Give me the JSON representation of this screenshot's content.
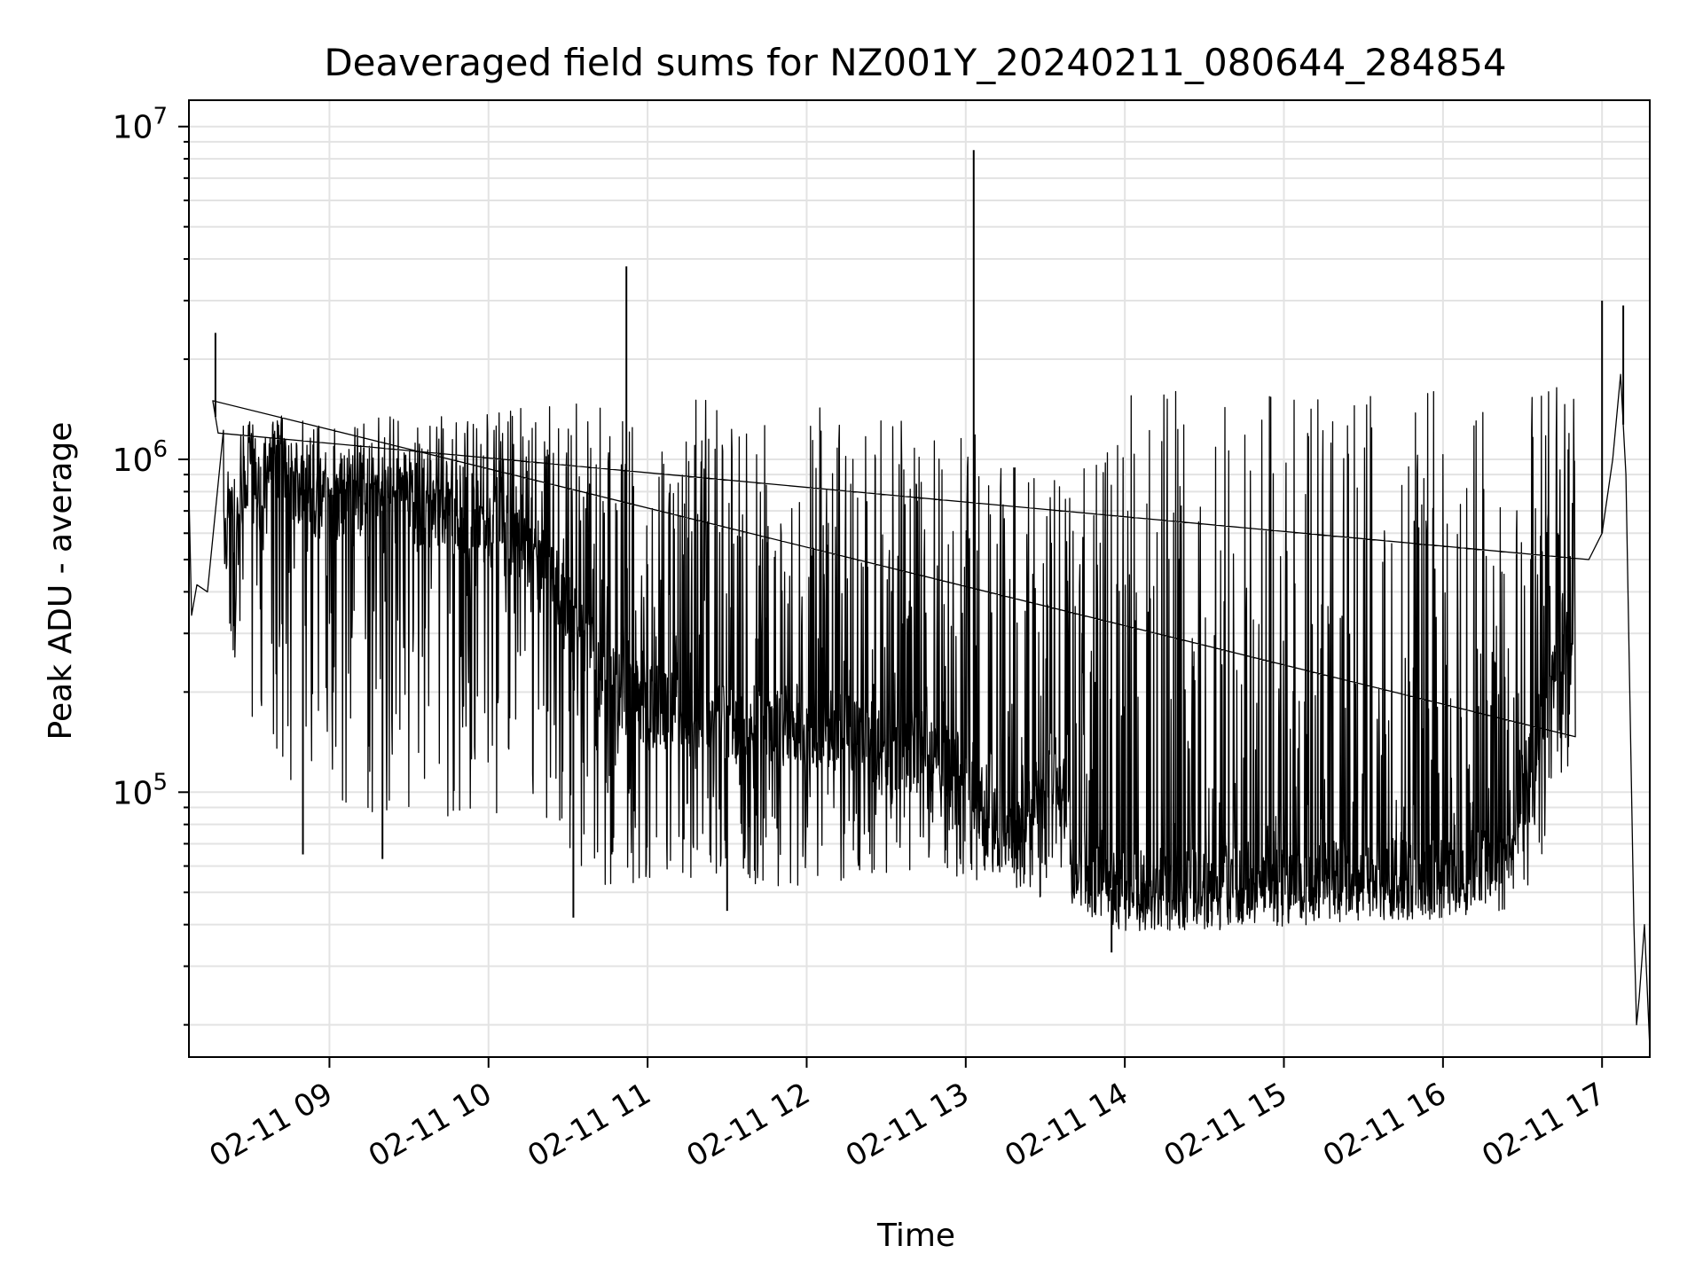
{
  "chart_data": {
    "type": "line",
    "title": "Deaveraged field sums for NZ001Y_20240211_080644_284854",
    "xlabel": "Time",
    "ylabel": "Peak ADU - average",
    "yscale": "log",
    "ylim": [
      16000,
      12000000
    ],
    "xlim": [
      "2024-02-11 08:07",
      "2024-02-11 17:18"
    ],
    "grid": true,
    "x_ticks": [
      {
        "value": "2024-02-11 09:00",
        "label": "02-11 09"
      },
      {
        "value": "2024-02-11 10:00",
        "label": "02-11 10"
      },
      {
        "value": "2024-02-11 11:00",
        "label": "02-11 11"
      },
      {
        "value": "2024-02-11 12:00",
        "label": "02-11 12"
      },
      {
        "value": "2024-02-11 13:00",
        "label": "02-11 13"
      },
      {
        "value": "2024-02-11 14:00",
        "label": "02-11 14"
      },
      {
        "value": "2024-02-11 15:00",
        "label": "02-11 15"
      },
      {
        "value": "2024-02-11 16:00",
        "label": "02-11 16"
      },
      {
        "value": "2024-02-11 17:00",
        "label": "02-11 17"
      }
    ],
    "y_ticks": [
      {
        "value": 100000,
        "base": "10",
        "exp": "5"
      },
      {
        "value": 1000000,
        "base": "10",
        "exp": "6"
      },
      {
        "value": 10000000,
        "base": "10",
        "exp": "7"
      }
    ],
    "series": [
      {
        "color": "#000000",
        "points": [
          [
            "2024-02-11 08:07",
            800000
          ],
          [
            "2024-02-11 08:08",
            340000
          ],
          [
            "2024-02-11 08:10",
            420000
          ],
          [
            "2024-02-11 08:14",
            400000
          ],
          [
            "2024-02-11 08:16",
            1500000
          ],
          [
            "2024-02-11 08:18",
            1200000
          ],
          [
            "2024-02-11 08:20",
            600000
          ],
          [
            "2024-02-11 08:25",
            700000
          ],
          [
            "2024-02-11 08:30",
            900000
          ],
          [
            "2024-02-11 08:35",
            700000
          ],
          [
            "2024-02-11 08:40",
            1100000
          ],
          [
            "2024-02-11 08:45",
            900000
          ],
          [
            "2024-02-11 08:50",
            800000
          ],
          [
            "2024-02-11 09:00",
            750000
          ],
          [
            "2024-02-11 09:10",
            800000
          ],
          [
            "2024-02-11 09:20",
            700000
          ],
          [
            "2024-02-11 09:30",
            750000
          ],
          [
            "2024-02-11 09:40",
            700000
          ],
          [
            "2024-02-11 09:50",
            650000
          ],
          [
            "2024-02-11 10:00",
            650000
          ],
          [
            "2024-02-11 10:10",
            550000
          ],
          [
            "2024-02-11 10:20",
            450000
          ],
          [
            "2024-02-11 10:30",
            350000
          ],
          [
            "2024-02-11 10:40",
            250000
          ],
          [
            "2024-02-11 10:50",
            200000
          ],
          [
            "2024-02-11 11:00",
            180000
          ],
          [
            "2024-02-11 11:15",
            170000
          ],
          [
            "2024-02-11 11:30",
            160000
          ],
          [
            "2024-02-11 11:45",
            160000
          ],
          [
            "2024-02-11 12:00",
            160000
          ],
          [
            "2024-02-11 12:15",
            150000
          ],
          [
            "2024-02-11 12:30",
            140000
          ],
          [
            "2024-02-11 12:45",
            130000
          ],
          [
            "2024-02-11 13:00",
            110000
          ],
          [
            "2024-02-11 13:10",
            80000
          ],
          [
            "2024-02-11 13:20",
            75000
          ],
          [
            "2024-02-11 13:30",
            110000
          ],
          [
            "2024-02-11 13:35",
            120000
          ],
          [
            "2024-02-11 13:40",
            65000
          ],
          [
            "2024-02-11 13:50",
            52000
          ],
          [
            "2024-02-11 14:00",
            50000
          ],
          [
            "2024-02-11 14:30",
            52000
          ],
          [
            "2024-02-11 15:00",
            55000
          ],
          [
            "2024-02-11 15:30",
            55000
          ],
          [
            "2024-02-11 16:00",
            55000
          ],
          [
            "2024-02-11 16:20",
            60000
          ],
          [
            "2024-02-11 16:35",
            130000
          ],
          [
            "2024-02-11 16:45",
            280000
          ],
          [
            "2024-02-11 16:55",
            500000
          ],
          [
            "2024-02-11 17:00",
            600000
          ],
          [
            "2024-02-11 17:04",
            1000000
          ],
          [
            "2024-02-11 17:07",
            1800000
          ],
          [
            "2024-02-11 17:09",
            900000
          ],
          [
            "2024-02-11 17:12",
            40000
          ],
          [
            "2024-02-11 17:13",
            20000
          ],
          [
            "2024-02-11 17:14",
            24000
          ],
          [
            "2024-02-11 17:16",
            40000
          ],
          [
            "2024-02-11 17:18",
            17000
          ]
        ],
        "spikes": [
          [
            "2024-02-11 08:17",
            2400000
          ],
          [
            "2024-02-11 08:50",
            65000
          ],
          [
            "2024-02-11 09:20",
            63000
          ],
          [
            "2024-02-11 10:32",
            42000
          ],
          [
            "2024-02-11 10:52",
            3800000
          ],
          [
            "2024-02-11 11:30",
            44000
          ],
          [
            "2024-02-11 13:03",
            8500000
          ],
          [
            "2024-02-11 13:55",
            33000
          ],
          [
            "2024-02-11 17:00",
            3000000
          ],
          [
            "2024-02-11 17:08",
            2900000
          ]
        ],
        "envelope_upper": [
          [
            "2024-02-11 08:20",
            1300000
          ],
          [
            "2024-02-11 09:00",
            1350000
          ],
          [
            "2024-02-11 10:00",
            1400000
          ],
          [
            "2024-02-11 10:40",
            1600000
          ],
          [
            "2024-02-11 11:30",
            1500000
          ],
          [
            "2024-02-11 12:30",
            1400000
          ],
          [
            "2024-02-11 13:00",
            1300000
          ],
          [
            "2024-02-11 13:40",
            800000
          ],
          [
            "2024-02-11 14:00",
            1600000
          ],
          [
            "2024-02-11 15:00",
            1600000
          ],
          [
            "2024-02-11 16:00",
            1600000
          ],
          [
            "2024-02-11 16:50",
            1700000
          ]
        ],
        "envelope_lower": [
          [
            "2024-02-11 08:20",
            250000
          ],
          [
            "2024-02-11 08:40",
            110000
          ],
          [
            "2024-02-11 09:00",
            90000
          ],
          [
            "2024-02-11 10:00",
            80000
          ],
          [
            "2024-02-11 10:40",
            50000
          ],
          [
            "2024-02-11 11:30",
            50000
          ],
          [
            "2024-02-11 12:30",
            55000
          ],
          [
            "2024-02-11 13:00",
            55000
          ],
          [
            "2024-02-11 13:40",
            45000
          ],
          [
            "2024-02-11 14:00",
            38000
          ],
          [
            "2024-02-11 15:00",
            39000
          ],
          [
            "2024-02-11 16:00",
            42000
          ],
          [
            "2024-02-11 16:30",
            45000
          ],
          [
            "2024-02-11 16:50",
            120000
          ]
        ]
      }
    ]
  }
}
